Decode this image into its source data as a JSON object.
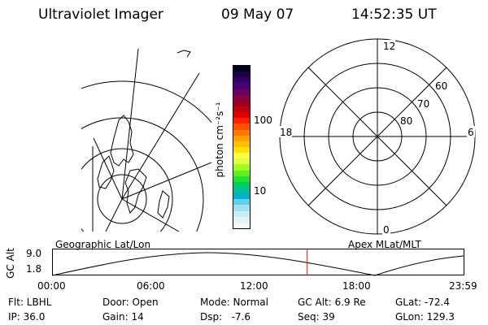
{
  "header": {
    "instrument": "Ultraviolet Imager",
    "date": "09 May 07",
    "time": "14:52:35 UT"
  },
  "colorbar": {
    "label": "photon cm⁻²s⁻¹",
    "ticks": [
      "100",
      "10"
    ],
    "scale": "log",
    "colors": [
      "#000020",
      "#1a0040",
      "#330066",
      "#4a0070",
      "#6a0060",
      "#8a0040",
      "#a00020",
      "#c00010",
      "#e00000",
      "#ff2000",
      "#ff5000",
      "#ff7a00",
      "#ffa000",
      "#ffc000",
      "#ffe000",
      "#ffff40",
      "#e0ff40",
      "#a0ff20",
      "#60f020",
      "#20e030",
      "#00d060",
      "#00c0a0",
      "#00b0d0",
      "#60d0e8",
      "#a0e0f0",
      "#c8ecf4",
      "#e0f4f8",
      "#f0f8fa"
    ]
  },
  "polar_plot": {
    "mlt_labels": {
      "top": "12",
      "bottom": "0",
      "left": "18",
      "right": "6"
    },
    "lat_labels": [
      "60",
      "70",
      "80"
    ]
  },
  "timeline": {
    "left_label": "Geographic Lat/Lon",
    "right_label": "Apex MLat/MLT",
    "axis_label": "GC Alt",
    "y_ticks": [
      "9.0",
      "1.8"
    ],
    "x_ticks": [
      "00:00",
      "06:00",
      "12:00",
      "18:00",
      "23:59"
    ],
    "current_time_fraction": 0.62,
    "marker_color": "#ff0000"
  },
  "info": {
    "flt": "Flt: LBHL",
    "door": "Door: Open",
    "mode": "Mode: Normal",
    "gc_alt": "GC Alt: 6.9 Re",
    "glat": "GLat: -72.4",
    "ip": "IP: 36.0",
    "gain": "Gain: 14",
    "dsp": "Dsp:   -7.6",
    "seq": "Seq: 39",
    "glon": "GLon: 129.3"
  }
}
